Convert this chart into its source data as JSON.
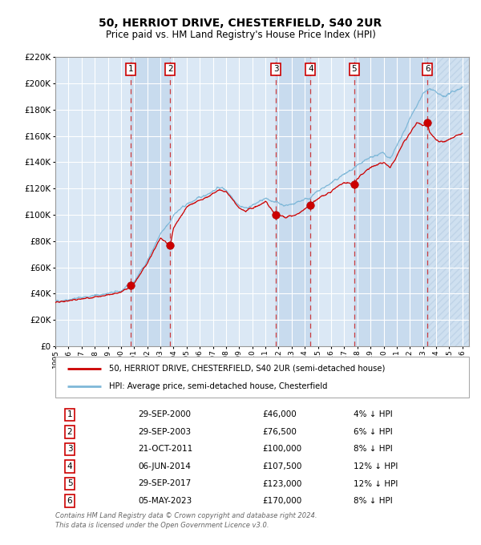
{
  "title": "50, HERRIOT DRIVE, CHESTERFIELD, S40 2UR",
  "subtitle": "Price paid vs. HM Land Registry's House Price Index (HPI)",
  "title_fontsize": 10,
  "subtitle_fontsize": 8.5,
  "hpi_color": "#7fb8d8",
  "price_color": "#cc0000",
  "background_color": "#ffffff",
  "plot_bg_color": "#dbe8f5",
  "grid_color": "#ffffff",
  "ylim": [
    0,
    220000
  ],
  "yticks": [
    0,
    20000,
    40000,
    60000,
    80000,
    100000,
    120000,
    140000,
    160000,
    180000,
    200000,
    220000
  ],
  "xlim_start": 1995.0,
  "xlim_end": 2026.5,
  "xtick_years": [
    1995,
    1996,
    1997,
    1998,
    1999,
    2000,
    2001,
    2002,
    2003,
    2004,
    2005,
    2006,
    2007,
    2008,
    2009,
    2010,
    2011,
    2012,
    2013,
    2014,
    2015,
    2016,
    2017,
    2018,
    2019,
    2020,
    2021,
    2022,
    2023,
    2024,
    2025,
    2026
  ],
  "sales": [
    {
      "num": 1,
      "date": "29-SEP-2000",
      "year": 2000.75,
      "price": 46000,
      "pct": "4%",
      "dir": "↓"
    },
    {
      "num": 2,
      "date": "29-SEP-2003",
      "year": 2003.75,
      "price": 76500,
      "pct": "6%",
      "dir": "↓"
    },
    {
      "num": 3,
      "date": "21-OCT-2011",
      "year": 2011.8,
      "price": 100000,
      "pct": "8%",
      "dir": "↓"
    },
    {
      "num": 4,
      "date": "06-JUN-2014",
      "year": 2014.43,
      "price": 107500,
      "pct": "12%",
      "dir": "↓"
    },
    {
      "num": 5,
      "date": "29-SEP-2017",
      "year": 2017.75,
      "price": 123000,
      "pct": "12%",
      "dir": "↓"
    },
    {
      "num": 6,
      "date": "05-MAY-2023",
      "year": 2023.34,
      "price": 170000,
      "pct": "8%",
      "dir": "↓"
    }
  ],
  "legend_line1": "50, HERRIOT DRIVE, CHESTERFIELD, S40 2UR (semi-detached house)",
  "legend_line2": "HPI: Average price, semi-detached house, Chesterfield",
  "footer1": "Contains HM Land Registry data © Crown copyright and database right 2024.",
  "footer2": "This data is licensed under the Open Government Licence v3.0."
}
